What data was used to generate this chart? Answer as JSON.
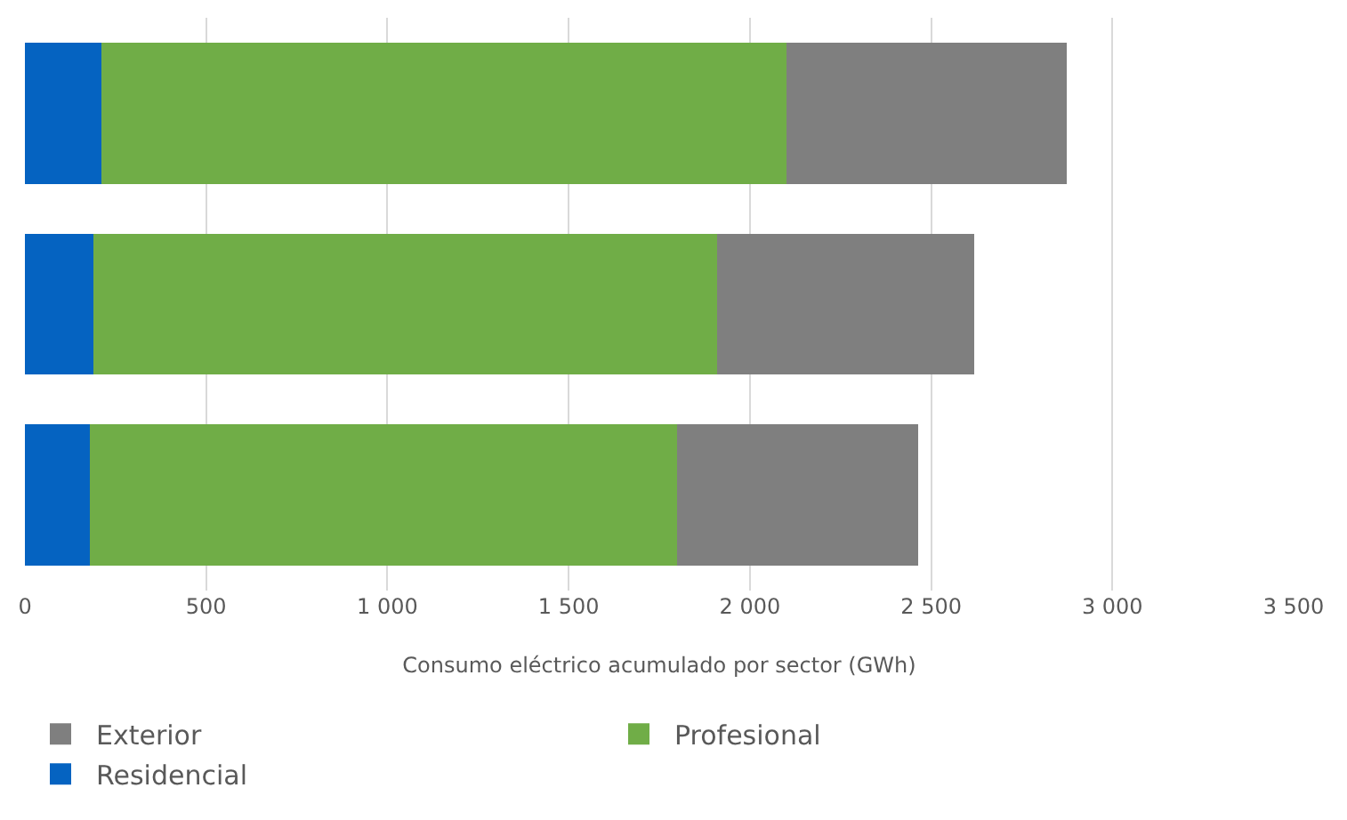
{
  "chart_data": {
    "type": "bar",
    "orientation": "horizontal",
    "stacked": true,
    "xlabel": "Consumo eléctrico acumulado por sector (GWh)",
    "categories": [
      null,
      null,
      null
    ],
    "series": [
      {
        "name": "Residencial",
        "color": "#0563c1",
        "values": [
          210,
          190,
          180
        ]
      },
      {
        "name": "Profesional",
        "color": "#70ad47",
        "values": [
          1890,
          1720,
          1620
        ]
      },
      {
        "name": "Exterior",
        "color": "#7f7f7f",
        "values": [
          775,
          710,
          665
        ]
      }
    ],
    "xlim": [
      0,
      3500
    ],
    "xticks": [
      0,
      500,
      {
        "value": 1000,
        "label": "1 000"
      },
      {
        "value": 1500,
        "label": "1 500"
      },
      {
        "value": 2000,
        "label": "2 000"
      },
      {
        "value": 2500,
        "label": "2 500"
      },
      {
        "value": 3000,
        "label": "3 000"
      },
      {
        "value": 3500,
        "label": "3 500"
      }
    ],
    "grid": "x",
    "legend": "bottom"
  }
}
